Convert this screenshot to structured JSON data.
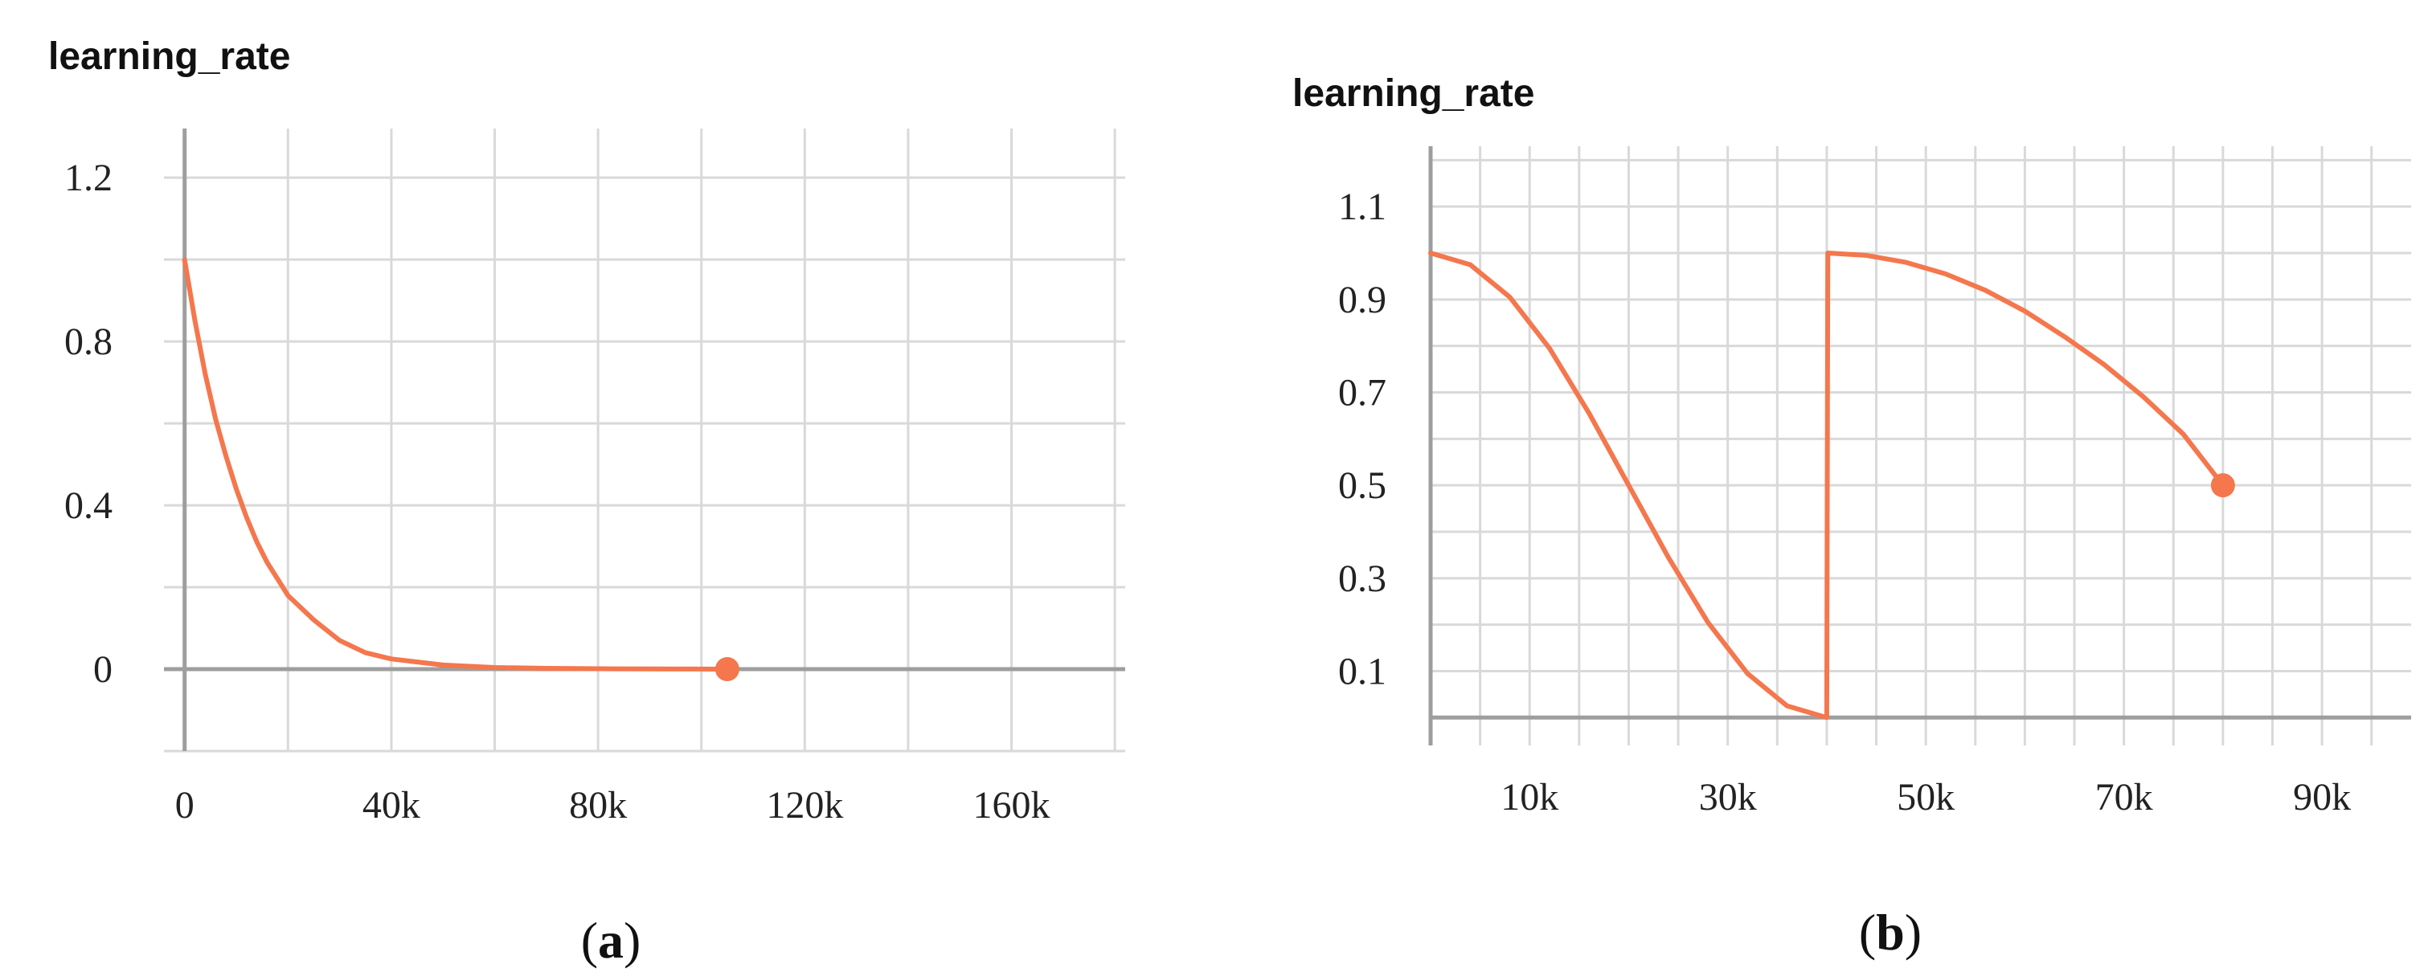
{
  "chart_data": [
    {
      "type": "line",
      "title": "learning_rate",
      "caption_open": "(",
      "caption_letter": "a",
      "caption_close": ")",
      "color": "#f4774d",
      "xlim": [
        -4000,
        182000
      ],
      "ylim": [
        -0.2,
        1.32
      ],
      "x_ticks": [
        0,
        40000,
        80000,
        120000,
        160000
      ],
      "x_tick_labels": [
        "0",
        "40k",
        "80k",
        "120k",
        "160k"
      ],
      "y_ticks": [
        0,
        0.4,
        0.8,
        1.2
      ],
      "y_tick_labels": [
        "0",
        "0.4",
        "0.8",
        "1.2"
      ],
      "x_grid": [
        0,
        20000,
        40000,
        60000,
        80000,
        100000,
        120000,
        140000,
        160000,
        180000
      ],
      "y_grid": [
        -0.2,
        0,
        0.2,
        0.4,
        0.6,
        0.8,
        1.0,
        1.2
      ],
      "grid": true,
      "series": [
        {
          "x": [
            0,
            2000,
            4000,
            6000,
            8000,
            10000,
            12000,
            14000,
            16000,
            18000,
            20000,
            25000,
            30000,
            35000,
            40000,
            50000,
            60000,
            70000,
            80000,
            90000,
            100000,
            105000
          ],
          "y": [
            1.0,
            0.85,
            0.72,
            0.61,
            0.52,
            0.44,
            0.37,
            0.31,
            0.26,
            0.22,
            0.18,
            0.12,
            0.07,
            0.04,
            0.025,
            0.01,
            0.004,
            0.002,
            0.001,
            0.0005,
            0.0002,
            0.0001
          ]
        }
      ],
      "end_marker": [
        105000,
        0.0001
      ]
    },
    {
      "type": "line",
      "title": "learning_rate",
      "caption_open": "(",
      "caption_letter": "b",
      "caption_close": ")",
      "color": "#f4774d",
      "xlim": [
        0,
        99000
      ],
      "ylim": [
        -0.06,
        1.23
      ],
      "x_ticks": [
        10000,
        30000,
        50000,
        70000,
        90000
      ],
      "x_tick_labels": [
        "10k",
        "30k",
        "50k",
        "70k",
        "90k"
      ],
      "y_ticks": [
        0.1,
        0.3,
        0.5,
        0.7,
        0.9,
        1.1
      ],
      "y_tick_labels": [
        "0.1",
        "0.3",
        "0.5",
        "0.7",
        "0.9",
        "1.1"
      ],
      "x_grid": [
        0,
        5000,
        10000,
        15000,
        20000,
        25000,
        30000,
        35000,
        40000,
        45000,
        50000,
        55000,
        60000,
        65000,
        70000,
        75000,
        80000,
        85000,
        90000,
        95000
      ],
      "y_grid": [
        0,
        0.1,
        0.2,
        0.3,
        0.4,
        0.5,
        0.6,
        0.7,
        0.8,
        0.9,
        1.0,
        1.1,
        1.2
      ],
      "grid": true,
      "series": [
        {
          "x": [
            0,
            4000,
            8000,
            12000,
            16000,
            20000,
            24000,
            28000,
            32000,
            36000,
            40000,
            40100,
            44000,
            48000,
            52000,
            56000,
            60000,
            64000,
            68000,
            72000,
            76000,
            80000
          ],
          "y": [
            1.0,
            0.975,
            0.905,
            0.795,
            0.655,
            0.5,
            0.345,
            0.205,
            0.095,
            0.025,
            0.0,
            1.0,
            0.995,
            0.98,
            0.955,
            0.92,
            0.875,
            0.82,
            0.76,
            0.69,
            0.61,
            0.5
          ]
        }
      ],
      "end_marker": [
        80000,
        0.5
      ]
    }
  ]
}
